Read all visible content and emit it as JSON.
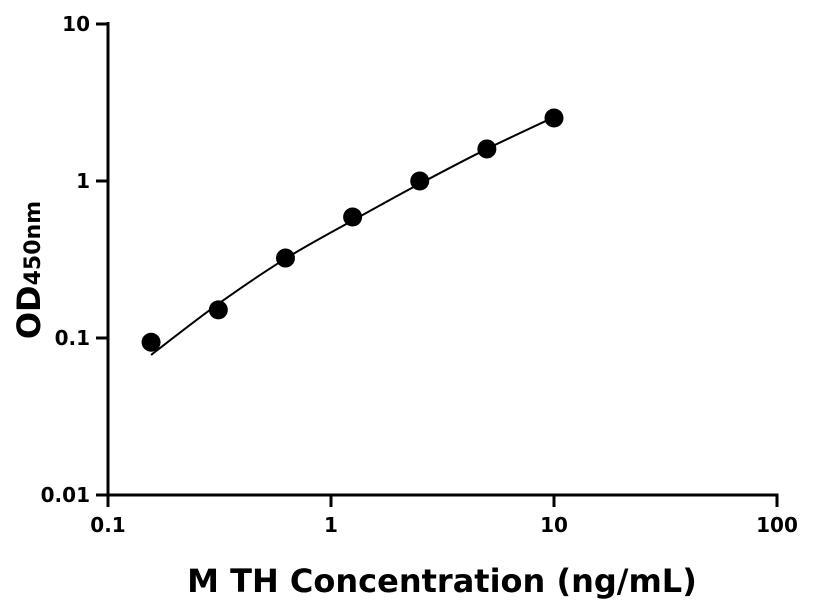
{
  "chart_data": {
    "type": "scatter",
    "xlabel": "M TH Concentration (ng/mL)",
    "ylabel": "OD",
    "ylabel_subscript": "450nm",
    "xscale": "log",
    "yscale": "log",
    "xlim": [
      0.1,
      100
    ],
    "ylim": [
      0.01,
      10
    ],
    "xticks": [
      "0.1",
      "1",
      "10",
      "100"
    ],
    "yticks": [
      "0.01",
      "0.1",
      "1",
      "10"
    ],
    "grid": false,
    "marker_color": "#000000",
    "points": {
      "x": [
        0.156,
        0.3125,
        0.625,
        1.25,
        2.5,
        5,
        10
      ],
      "y": [
        0.094,
        0.151,
        0.323,
        0.59,
        1.0,
        1.6,
        2.52
      ]
    },
    "fit_curve": {
      "x": [
        0.156,
        0.3125,
        0.625,
        1.25,
        2.5,
        5,
        10
      ],
      "y": [
        0.078,
        0.165,
        0.32,
        0.56,
        0.96,
        1.6,
        2.55
      ]
    }
  }
}
